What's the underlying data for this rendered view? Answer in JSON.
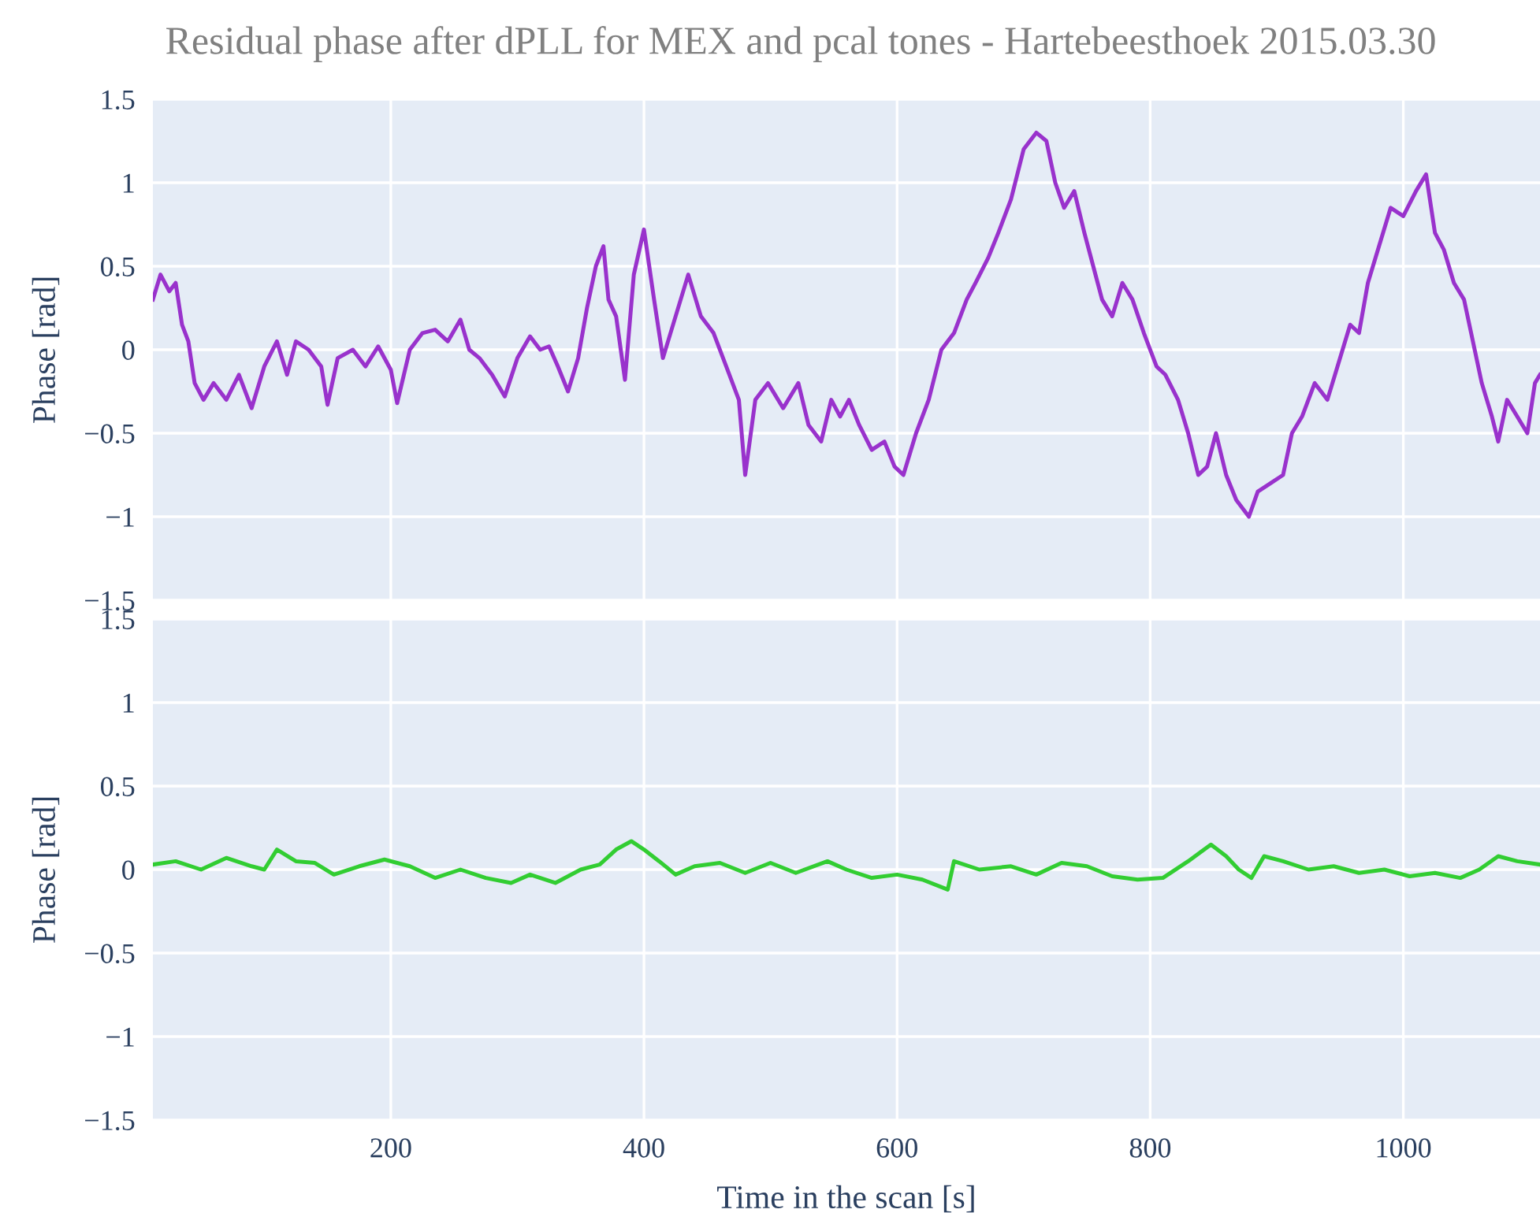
{
  "chart_data": [
    {
      "type": "line",
      "title": "Residual phase after dPLL for MEX and pcal tones - Hartebeesthoek 2015.03.30",
      "ylabel": "Phase [rad]",
      "grid": true,
      "tick_labels": "y",
      "line_style": "solid",
      "xlim": [
        12,
        1108
      ],
      "xticks": [
        200,
        400,
        600,
        800,
        1000
      ],
      "ylim": [
        -1.5,
        1.5
      ],
      "yticks": [
        {
          "value": -1.5,
          "label": "−1.5"
        },
        {
          "value": -1,
          "label": "−1"
        },
        {
          "value": -0.5,
          "label": "−0.5"
        },
        0,
        0.5,
        1,
        1.5
      ],
      "series": [
        {
          "color": "#9932cc",
          "x": [
            12,
            18,
            25,
            30,
            35,
            40,
            45,
            52,
            60,
            70,
            80,
            90,
            100,
            110,
            118,
            125,
            135,
            145,
            150,
            158,
            170,
            180,
            190,
            200,
            205,
            215,
            225,
            235,
            245,
            255,
            262,
            270,
            280,
            290,
            300,
            310,
            318,
            325,
            332,
            340,
            348,
            355,
            362,
            368,
            372,
            378,
            385,
            392,
            400,
            408,
            415,
            425,
            435,
            445,
            455,
            465,
            475,
            480,
            488,
            498,
            510,
            522,
            530,
            540,
            548,
            555,
            562,
            570,
            580,
            590,
            598,
            605,
            615,
            625,
            635,
            645,
            655,
            662,
            672,
            680,
            690,
            700,
            710,
            718,
            725,
            732,
            740,
            748,
            755,
            762,
            770,
            778,
            786,
            795,
            805,
            812,
            822,
            830,
            838,
            845,
            852,
            860,
            868,
            878,
            885,
            895,
            905,
            912,
            920,
            930,
            940,
            948,
            958,
            965,
            972,
            980,
            990,
            1000,
            1010,
            1018,
            1025,
            1032,
            1040,
            1048,
            1055,
            1062,
            1070,
            1075,
            1082,
            1090,
            1098,
            1104,
            1108
          ],
          "values": [
            0.3,
            0.45,
            0.35,
            0.4,
            0.15,
            0.05,
            -0.2,
            -0.3,
            -0.2,
            -0.3,
            -0.15,
            -0.35,
            -0.1,
            0.05,
            -0.15,
            0.05,
            0.0,
            -0.1,
            -0.33,
            -0.05,
            0.0,
            -0.1,
            0.02,
            -0.12,
            -0.32,
            0.0,
            0.1,
            0.12,
            0.05,
            0.18,
            0.0,
            -0.05,
            -0.15,
            -0.28,
            -0.05,
            0.08,
            0.0,
            0.02,
            -0.1,
            -0.25,
            -0.05,
            0.25,
            0.5,
            0.62,
            0.3,
            0.2,
            -0.18,
            0.45,
            0.72,
            0.3,
            -0.05,
            0.2,
            0.45,
            0.2,
            0.1,
            -0.1,
            -0.3,
            -0.75,
            -0.3,
            -0.2,
            -0.35,
            -0.2,
            -0.45,
            -0.55,
            -0.3,
            -0.4,
            -0.3,
            -0.45,
            -0.6,
            -0.55,
            -0.7,
            -0.75,
            -0.5,
            -0.3,
            0.0,
            0.1,
            0.3,
            0.4,
            0.55,
            0.7,
            0.9,
            1.2,
            1.3,
            1.25,
            1.0,
            0.85,
            0.95,
            0.7,
            0.5,
            0.3,
            0.2,
            0.4,
            0.3,
            0.1,
            -0.1,
            -0.15,
            -0.3,
            -0.5,
            -0.75,
            -0.7,
            -0.5,
            -0.75,
            -0.9,
            -1.0,
            -0.85,
            -0.8,
            -0.75,
            -0.5,
            -0.4,
            -0.2,
            -0.3,
            -0.1,
            0.15,
            0.1,
            0.4,
            0.6,
            0.85,
            0.8,
            0.95,
            1.05,
            0.7,
            0.6,
            0.4,
            0.3,
            0.05,
            -0.2,
            -0.4,
            -0.55,
            -0.3,
            -0.4,
            -0.5,
            -0.2,
            -0.15
          ]
        }
      ]
    },
    {
      "type": "line",
      "xlabel": "Time in the scan [s]",
      "ylabel": "Phase [rad]",
      "grid": true,
      "line_style": "solid",
      "xlim": [
        12,
        1108
      ],
      "xticks": [
        200,
        400,
        600,
        800,
        1000
      ],
      "ylim": [
        -1.5,
        1.5
      ],
      "yticks": [
        {
          "value": -1.5,
          "label": "−1.5"
        },
        {
          "value": -1,
          "label": "−1"
        },
        {
          "value": -0.5,
          "label": "−0.5"
        },
        0,
        0.5,
        1,
        1.5
      ],
      "series": [
        {
          "color": "#32cd32",
          "x": [
            12,
            30,
            50,
            70,
            90,
            100,
            110,
            125,
            140,
            155,
            175,
            195,
            215,
            235,
            255,
            275,
            295,
            310,
            330,
            350,
            365,
            378,
            390,
            400,
            412,
            425,
            440,
            460,
            480,
            500,
            520,
            545,
            560,
            580,
            600,
            620,
            640,
            645,
            665,
            690,
            710,
            730,
            750,
            770,
            790,
            810,
            830,
            848,
            860,
            870,
            880,
            890,
            905,
            925,
            945,
            965,
            985,
            1005,
            1025,
            1045,
            1060,
            1075,
            1090,
            1108
          ],
          "values": [
            0.03,
            0.05,
            0.0,
            0.07,
            0.02,
            0.0,
            0.12,
            0.05,
            0.04,
            -0.03,
            0.02,
            0.06,
            0.02,
            -0.05,
            0.0,
            -0.05,
            -0.08,
            -0.03,
            -0.08,
            0.0,
            0.03,
            0.12,
            0.17,
            0.12,
            0.05,
            -0.03,
            0.02,
            0.04,
            -0.02,
            0.04,
            -0.02,
            0.05,
            0.0,
            -0.05,
            -0.03,
            -0.06,
            -0.12,
            0.05,
            0.0,
            0.02,
            -0.03,
            0.04,
            0.02,
            -0.04,
            -0.06,
            -0.05,
            0.05,
            0.15,
            0.08,
            0.0,
            -0.05,
            0.08,
            0.05,
            0.0,
            0.02,
            -0.02,
            0.0,
            -0.04,
            -0.02,
            -0.05,
            0.0,
            0.08,
            0.05,
            0.03
          ]
        }
      ]
    }
  ]
}
